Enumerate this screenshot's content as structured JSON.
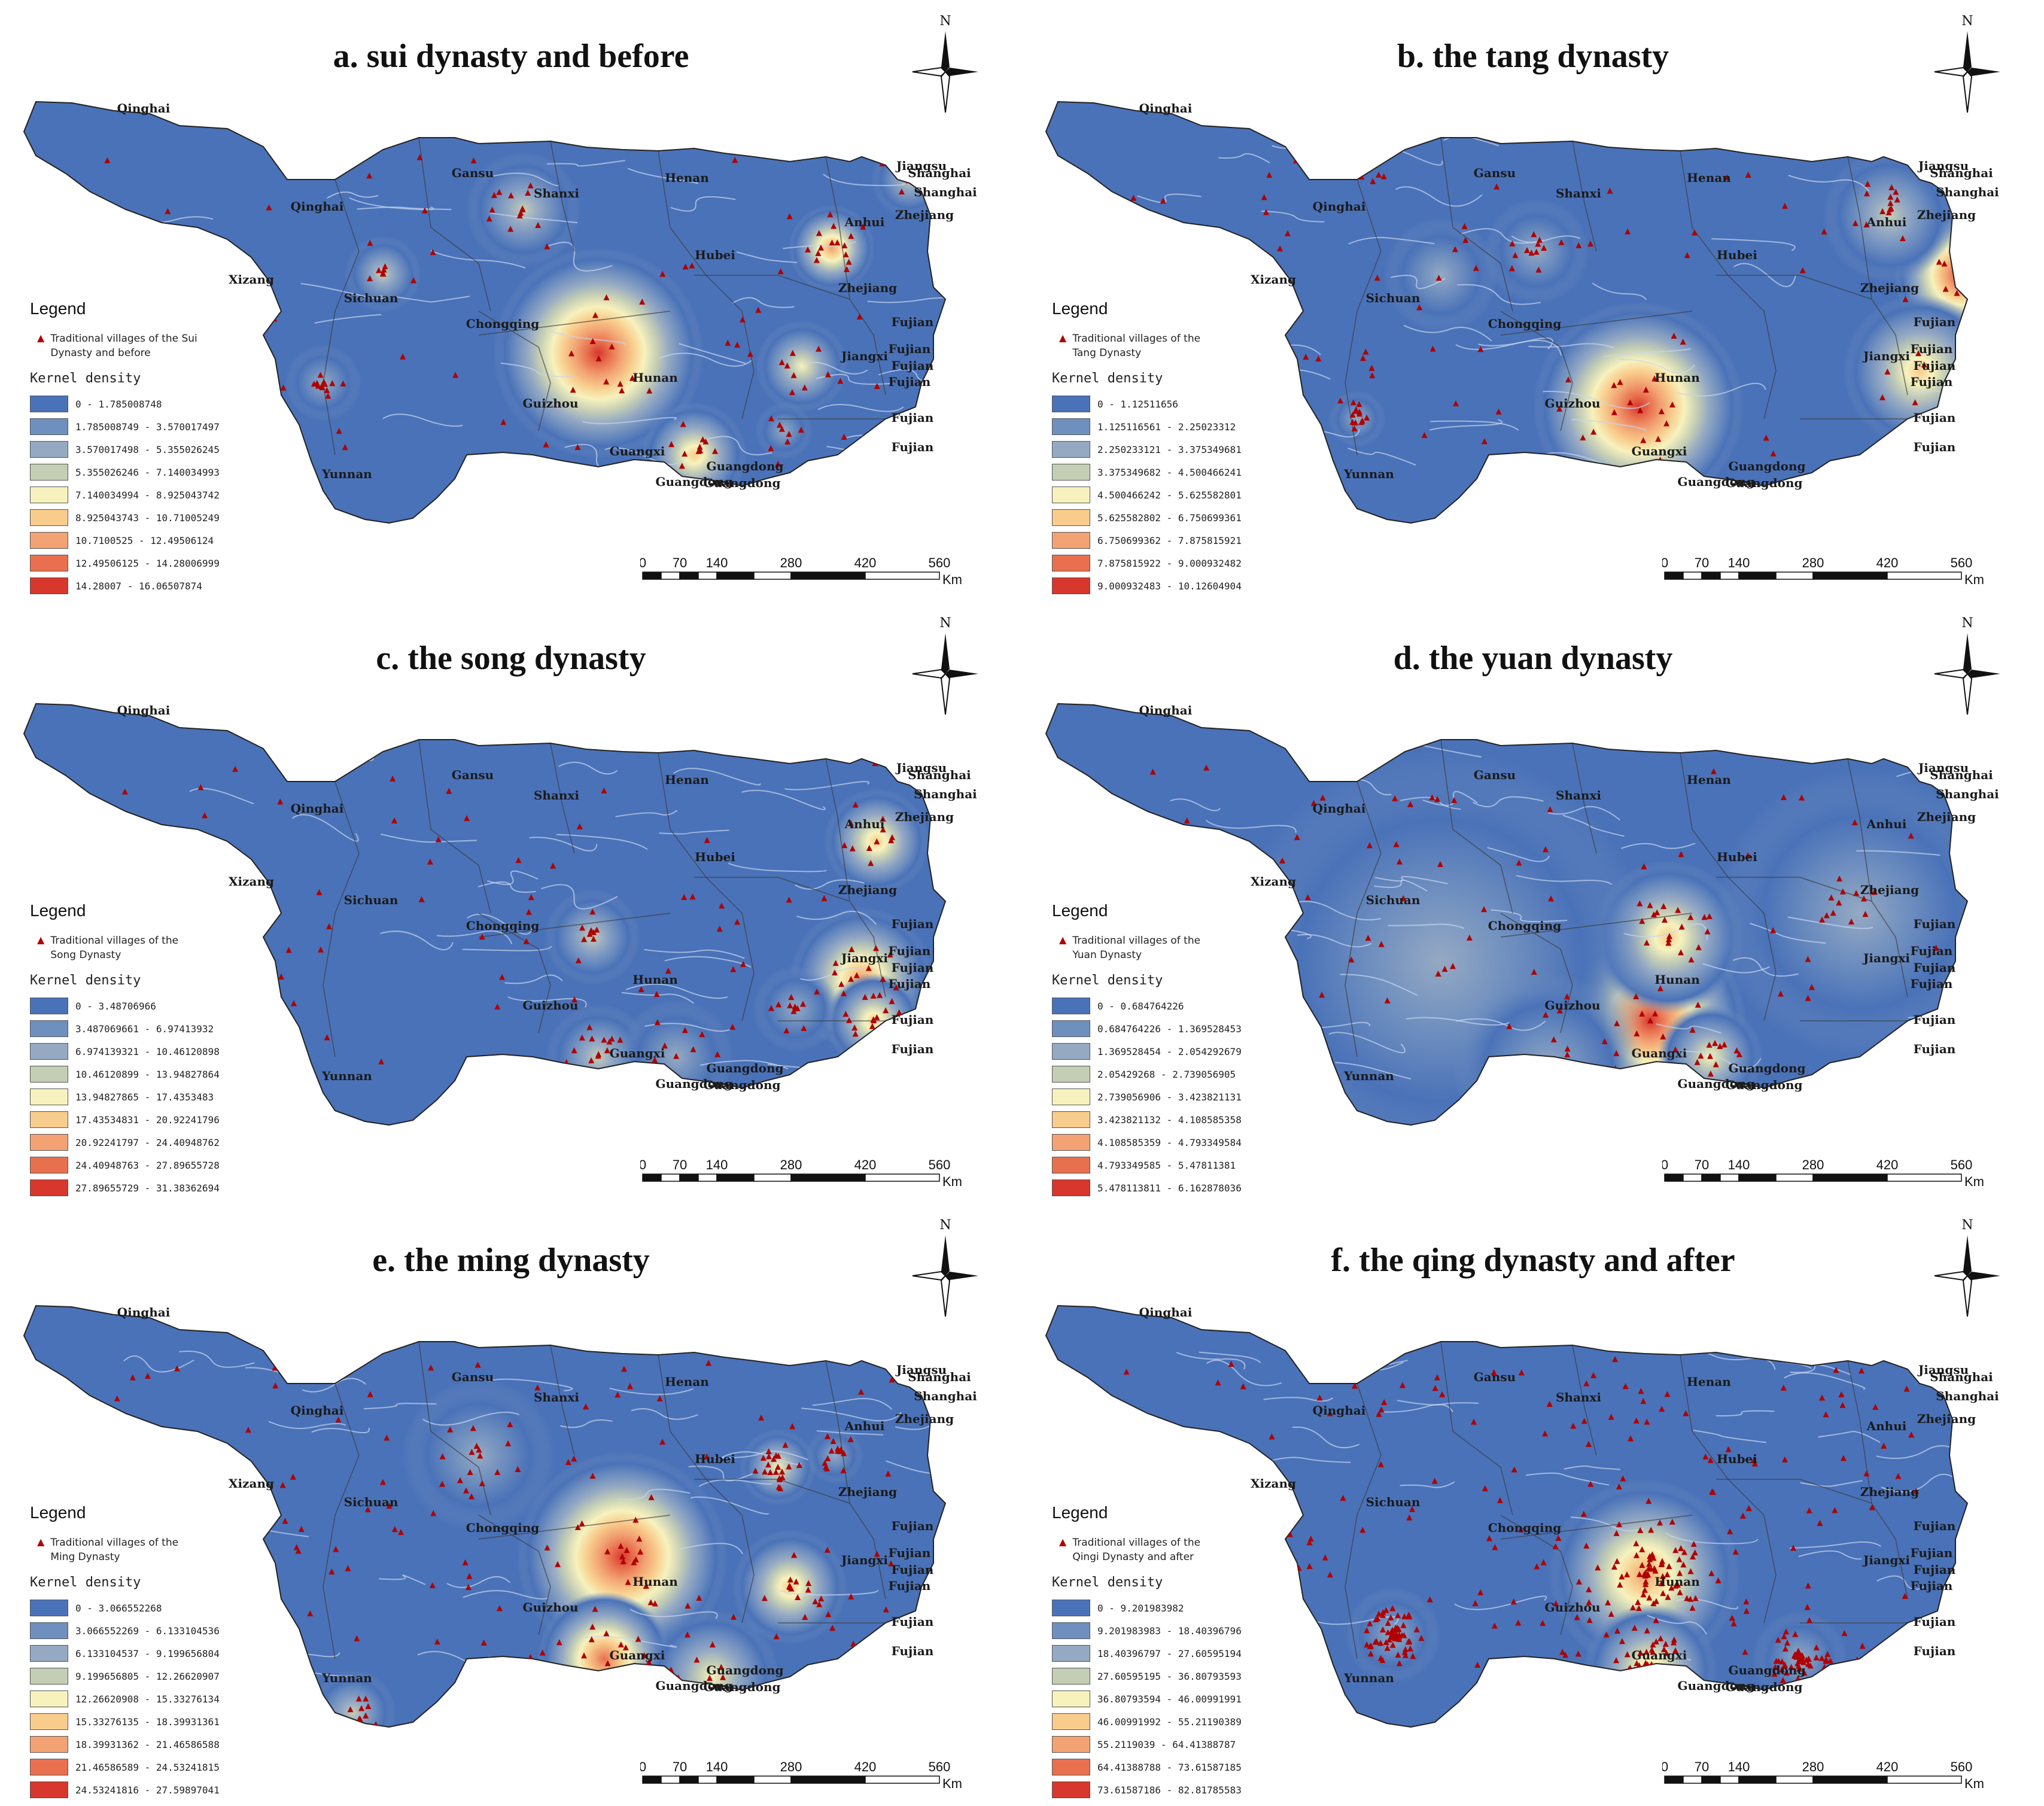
{
  "common": {
    "legend_title": "Legend",
    "kernel_title": "Kernel density",
    "north_label": "N",
    "scale_ticks": [
      "0",
      "70",
      "140",
      "280",
      "420",
      "560"
    ],
    "scale_unit": "Km",
    "province_labels": [
      "Qinghai",
      "Gansu",
      "Shanxi",
      "Henan",
      "Jiangsu",
      "Shanghai",
      "Shanghai",
      "Zhejiang",
      "Qinghai",
      "Anhui",
      "Xizang",
      "Hubei",
      "Sichuan",
      "Zhejiang",
      "Chongqing",
      "Fujian",
      "Fujian",
      "Fujian",
      "Jiangxi",
      "Hunan",
      "Fujian",
      "Guizhou",
      "Fujian",
      "Guangxi",
      "Fujian",
      "Guangdong",
      "Yunnan",
      "Guangdong",
      "Guangdong"
    ],
    "colors": {
      "class_ramp": [
        "#4a72b8",
        "#6f8fbf",
        "#95a9c3",
        "#c4ceb5",
        "#f7f2bd",
        "#f8cc8c",
        "#f2a273",
        "#e8704f",
        "#d7372d"
      ],
      "village_marker": "#b00000",
      "river": "#c7d6ef",
      "boundary": "#3b3b3b"
    }
  },
  "panels": [
    {
      "title": "a. sui dynasty and before",
      "village_legend": "Traditional villages of the Sui Dynasty and before",
      "classes": [
        "0 - 1.785008748",
        "1.785008749 - 3.570017497",
        "3.570017498 - 5.355026245",
        "5.355026246 - 7.140034993",
        "7.140034994 - 8.925043742",
        "8.925043743 - 10.71005249",
        "10.7100525 - 12.49506124",
        "12.49506125 - 14.28006999",
        "14.28007 - 16.06507874"
      ]
    },
    {
      "title": "b. the tang dynasty",
      "village_legend": "Traditional villages of the Tang Dynasty",
      "classes": [
        "0 - 1.12511656",
        "1.125116561 - 2.25023312",
        "2.250233121 - 3.375349681",
        "3.375349682 - 4.500466241",
        "4.500466242 - 5.625582801",
        "5.625582802 - 6.750699361",
        "6.750699362 - 7.875815921",
        "7.875815922 - 9.000932482",
        "9.000932483 - 10.12604904"
      ]
    },
    {
      "title": "c. the song dynasty",
      "village_legend": "Traditional villages of the Song Dynasty",
      "classes": [
        "0 - 3.48706966",
        "3.487069661 - 6.97413932",
        "6.974139321 - 10.46120898",
        "10.46120899 - 13.94827864",
        "13.94827865 - 17.4353483",
        "17.43534831 - 20.92241796",
        "20.92241797 - 24.40948762",
        "24.40948763 - 27.89655728",
        "27.89655729 - 31.38362694"
      ]
    },
    {
      "title": "d. the yuan dynasty",
      "village_legend": "Traditional villages of the Yuan Dynasty",
      "classes": [
        "0 - 0.684764226",
        "0.684764226 - 1.369528453",
        "1.369528454 - 2.054292679",
        "2.05429268 - 2.739056905",
        "2.739056906 - 3.423821131",
        "3.423821132 - 4.108585358",
        "4.108585359 - 4.793349584",
        "4.793349585 - 5.47811381",
        "5.478113811 - 6.162878036"
      ]
    },
    {
      "title": "e. the ming dynasty",
      "village_legend": "Traditional villages of the Ming Dynasty",
      "classes": [
        "0 - 3.066552268",
        "3.066552269 - 6.133104536",
        "6.133104537 - 9.199656804",
        "9.199656805 - 12.26620907",
        "12.26620908 - 15.33276134",
        "15.33276135 - 18.39931361",
        "18.39931362 - 21.46586588",
        "21.46586589 - 24.53241815",
        "24.53241816 - 27.59897041"
      ]
    },
    {
      "title": "f. the qing dynasty and after",
      "village_legend": "Traditional villages of the Qingi Dynasty and after",
      "classes": [
        "0 - 9.201983982",
        "9.201983983 - 18.40396796",
        "18.40396797 - 27.60595194",
        "27.60595195 - 36.80793593",
        "36.80793594 - 46.00991991",
        "46.00991992 - 55.21190389",
        "55.2119039 - 64.41388787",
        "64.41388788 - 73.61587185",
        "73.61587186 - 82.81785583"
      ]
    }
  ]
}
